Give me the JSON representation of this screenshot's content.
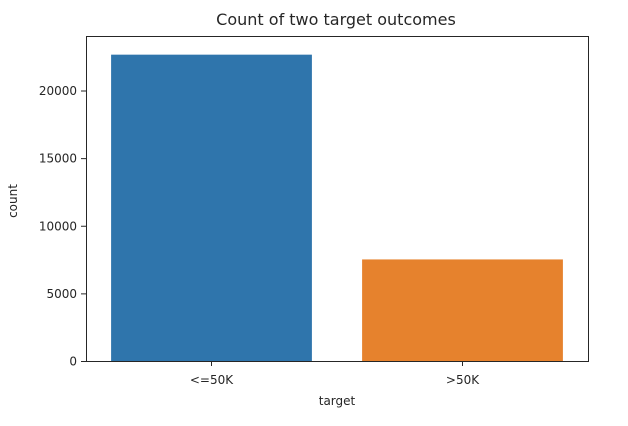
{
  "chart_data": {
    "type": "bar",
    "title": "Count of two target outcomes",
    "xlabel": "target",
    "ylabel": "count",
    "categories": [
      "<=50K",
      ">50K"
    ],
    "values": [
      22650,
      7510
    ],
    "colors": [
      "#2f75ac",
      "#e6822d"
    ],
    "ylim": [
      0,
      24030
    ],
    "yticks": [
      0,
      5000,
      10000,
      15000,
      20000
    ],
    "ytick_labels": [
      "0",
      "5000",
      "10000",
      "15000",
      "20000"
    ],
    "grid": false,
    "legend": "none"
  }
}
